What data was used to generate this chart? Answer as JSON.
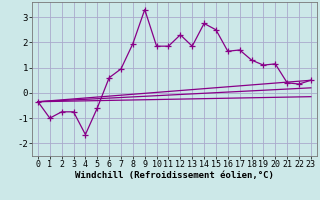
{
  "background_color": "#cce8e8",
  "grid_color": "#aaaacc",
  "line_color": "#880088",
  "xlabel": "Windchill (Refroidissement éolien,°C)",
  "xlabel_fontsize": 6.5,
  "tick_fontsize": 6,
  "xlim": [
    -0.5,
    23.5
  ],
  "ylim": [
    -2.5,
    3.6
  ],
  "yticks": [
    -2,
    -1,
    0,
    1,
    2,
    3
  ],
  "xticks": [
    0,
    1,
    2,
    3,
    4,
    5,
    6,
    7,
    8,
    9,
    10,
    11,
    12,
    13,
    14,
    15,
    16,
    17,
    18,
    19,
    20,
    21,
    22,
    23
  ],
  "series_main": {
    "x": [
      0,
      1,
      2,
      3,
      4,
      5,
      6,
      7,
      8,
      9,
      10,
      11,
      12,
      13,
      14,
      15,
      16,
      17,
      18,
      19,
      20,
      21,
      22,
      23
    ],
    "y": [
      -0.35,
      -1.0,
      -0.75,
      -0.75,
      -1.65,
      -0.6,
      0.6,
      0.95,
      1.95,
      3.3,
      1.85,
      1.85,
      2.3,
      1.85,
      2.75,
      2.5,
      1.65,
      1.7,
      1.3,
      1.1,
      1.15,
      0.4,
      0.35,
      0.5
    ]
  },
  "lines": [
    {
      "x0": 0,
      "y0": -0.35,
      "x1": 23,
      "y1": 0.5
    },
    {
      "x0": 0,
      "y0": -0.35,
      "x1": 23,
      "y1": 0.2
    },
    {
      "x0": 0,
      "y0": -0.35,
      "x1": 23,
      "y1": -0.15
    }
  ]
}
